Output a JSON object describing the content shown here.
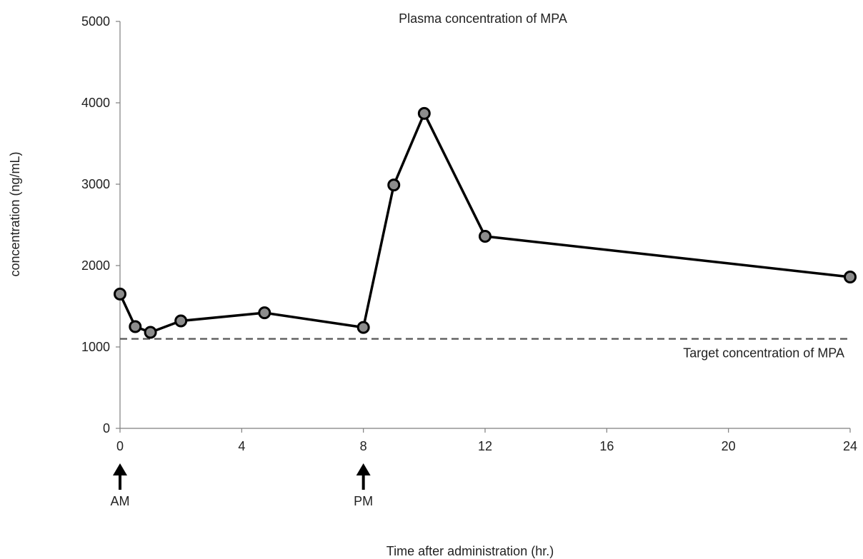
{
  "chart_data": {
    "type": "line",
    "title": "Plasma concentration of MPA",
    "xlabel": "Time after administration (hr.)",
    "ylabel": "concentration (ng/mL)",
    "xlim": [
      0,
      24
    ],
    "ylim": [
      0,
      5000
    ],
    "x_ticks": [
      0,
      4,
      8,
      12,
      16,
      20,
      24
    ],
    "y_ticks": [
      0,
      1000,
      2000,
      3000,
      4000,
      5000
    ],
    "grid": false,
    "series": [
      {
        "x": [
          0,
          0.5,
          1,
          2,
          4.75,
          8,
          9,
          10,
          12,
          24
        ],
        "y": [
          1650,
          1250,
          1180,
          1320,
          1420,
          1240,
          2990,
          3870,
          2360,
          1860
        ]
      }
    ],
    "reference_line": {
      "y": 1100,
      "label": "Target concentration of MPA",
      "style": "dashed"
    },
    "dose_markers": [
      {
        "x": 0,
        "label": "AM"
      },
      {
        "x": 8,
        "label": "PM"
      }
    ],
    "colors": {
      "line": "#000000",
      "marker_fill": "#8c8c8c",
      "reference": "#555555",
      "axis": "#7f7f7f"
    }
  }
}
